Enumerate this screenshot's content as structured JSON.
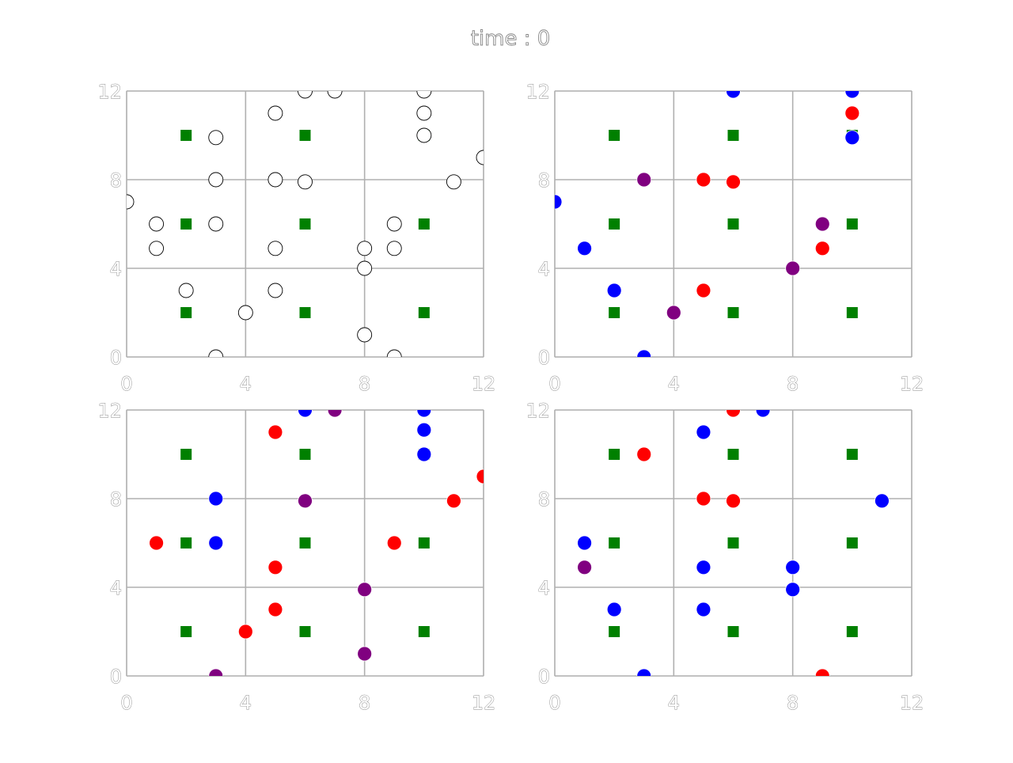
{
  "figure": {
    "suptitle": "time : 0"
  },
  "colors": {
    "green": "#008000",
    "blue": "#0000ff",
    "red": "#ff0000",
    "purple": "#800080",
    "hollow_edge": "#000000",
    "grid": "#b0b0b0"
  },
  "chart_data": [
    {
      "type": "scatter",
      "xlim": [
        0,
        12
      ],
      "ylim": [
        0,
        12
      ],
      "xticks": [
        "0",
        "4",
        "8",
        "12"
      ],
      "yticks": [
        "0",
        "4",
        "8",
        "12"
      ],
      "grid": true,
      "series": [
        {
          "color": "green",
          "marker": "square",
          "points": [
            [
              2,
              10
            ],
            [
              6,
              10
            ],
            [
              10,
              10
            ],
            [
              2,
              6
            ],
            [
              6,
              6
            ],
            [
              10,
              6
            ],
            [
              2,
              2
            ],
            [
              6,
              2
            ],
            [
              10,
              2
            ]
          ]
        },
        {
          "color": "hollow",
          "marker": "circle",
          "points": [
            [
              3,
              9.9
            ],
            [
              5,
              11
            ],
            [
              6,
              12
            ],
            [
              7,
              12
            ],
            [
              10,
              12
            ],
            [
              10,
              11
            ],
            [
              10,
              10
            ],
            [
              0,
              7
            ],
            [
              3,
              8
            ],
            [
              5,
              8
            ],
            [
              6,
              7.9
            ],
            [
              11,
              7.9
            ],
            [
              12,
              9
            ],
            [
              1,
              6
            ],
            [
              1,
              4.9
            ],
            [
              3,
              6
            ],
            [
              9,
              6
            ],
            [
              9,
              4.9
            ],
            [
              2,
              3
            ],
            [
              5,
              4.9
            ],
            [
              5,
              3
            ],
            [
              8,
              4.9
            ],
            [
              8,
              4
            ],
            [
              4,
              2
            ],
            [
              8,
              1
            ],
            [
              3,
              0
            ],
            [
              9,
              0
            ]
          ]
        }
      ]
    },
    {
      "type": "scatter",
      "xlim": [
        0,
        12
      ],
      "ylim": [
        0,
        12
      ],
      "xticks": [
        "0",
        "4",
        "8",
        "12"
      ],
      "yticks": [
        "0",
        "4",
        "8",
        "12"
      ],
      "grid": true,
      "series": [
        {
          "color": "green",
          "marker": "square",
          "points": [
            [
              2,
              10
            ],
            [
              6,
              10
            ],
            [
              10,
              10
            ],
            [
              2,
              6
            ],
            [
              6,
              6
            ],
            [
              10,
              6
            ],
            [
              2,
              2
            ],
            [
              6,
              2
            ],
            [
              10,
              2
            ]
          ]
        },
        {
          "color": "blue",
          "marker": "circle",
          "points": [
            [
              6,
              12
            ],
            [
              10,
              12
            ],
            [
              10,
              9.9
            ],
            [
              0,
              7
            ],
            [
              1,
              4.9
            ],
            [
              2,
              3
            ],
            [
              3,
              0
            ]
          ]
        },
        {
          "color": "red",
          "marker": "circle",
          "points": [
            [
              10,
              11
            ],
            [
              5,
              8
            ],
            [
              6,
              7.9
            ],
            [
              9,
              4.9
            ],
            [
              5,
              3
            ]
          ]
        },
        {
          "color": "purple",
          "marker": "circle",
          "points": [
            [
              3,
              8
            ],
            [
              9,
              6
            ],
            [
              8,
              4
            ],
            [
              4,
              2
            ]
          ]
        }
      ]
    },
    {
      "type": "scatter",
      "xlim": [
        0,
        12
      ],
      "ylim": [
        0,
        12
      ],
      "xticks": [
        "0",
        "4",
        "8",
        "12"
      ],
      "yticks": [
        "0",
        "4",
        "8",
        "12"
      ],
      "grid": true,
      "series": [
        {
          "color": "green",
          "marker": "square",
          "points": [
            [
              2,
              10
            ],
            [
              6,
              10
            ],
            [
              10,
              10
            ],
            [
              2,
              6
            ],
            [
              6,
              6
            ],
            [
              10,
              6
            ],
            [
              2,
              2
            ],
            [
              6,
              2
            ],
            [
              10,
              2
            ]
          ]
        },
        {
          "color": "blue",
          "marker": "circle",
          "points": [
            [
              6,
              12
            ],
            [
              10,
              12
            ],
            [
              10,
              11.1
            ],
            [
              10,
              10
            ],
            [
              3,
              8
            ],
            [
              3,
              6
            ]
          ]
        },
        {
          "color": "red",
          "marker": "circle",
          "points": [
            [
              5,
              11
            ],
            [
              12,
              9
            ],
            [
              11,
              7.9
            ],
            [
              1,
              6
            ],
            [
              9,
              6
            ],
            [
              5,
              4.9
            ],
            [
              5,
              3
            ],
            [
              4,
              2
            ]
          ]
        },
        {
          "color": "purple",
          "marker": "circle",
          "points": [
            [
              7,
              12
            ],
            [
              6,
              7.9
            ],
            [
              8,
              3.9
            ],
            [
              8,
              1
            ],
            [
              3,
              0
            ]
          ]
        }
      ]
    },
    {
      "type": "scatter",
      "xlim": [
        0,
        12
      ],
      "ylim": [
        0,
        12
      ],
      "xticks": [
        "0",
        "4",
        "8",
        "12"
      ],
      "yticks": [
        "0",
        "4",
        "8",
        "12"
      ],
      "grid": true,
      "series": [
        {
          "color": "green",
          "marker": "square",
          "points": [
            [
              2,
              10
            ],
            [
              6,
              10
            ],
            [
              10,
              10
            ],
            [
              2,
              6
            ],
            [
              6,
              6
            ],
            [
              10,
              6
            ],
            [
              2,
              2
            ],
            [
              6,
              2
            ],
            [
              10,
              2
            ]
          ]
        },
        {
          "color": "blue",
          "marker": "circle",
          "points": [
            [
              7,
              12
            ],
            [
              5,
              11
            ],
            [
              11,
              7.9
            ],
            [
              1,
              6
            ],
            [
              5,
              4.9
            ],
            [
              8,
              4.9
            ],
            [
              8,
              3.9
            ],
            [
              2,
              3
            ],
            [
              5,
              3
            ],
            [
              3,
              0
            ]
          ]
        },
        {
          "color": "red",
          "marker": "circle",
          "points": [
            [
              6,
              12
            ],
            [
              3,
              10
            ],
            [
              5,
              8
            ],
            [
              6,
              7.9
            ],
            [
              9,
              0
            ]
          ]
        },
        {
          "color": "purple",
          "marker": "circle",
          "points": [
            [
              1,
              4.9
            ]
          ]
        }
      ]
    }
  ]
}
